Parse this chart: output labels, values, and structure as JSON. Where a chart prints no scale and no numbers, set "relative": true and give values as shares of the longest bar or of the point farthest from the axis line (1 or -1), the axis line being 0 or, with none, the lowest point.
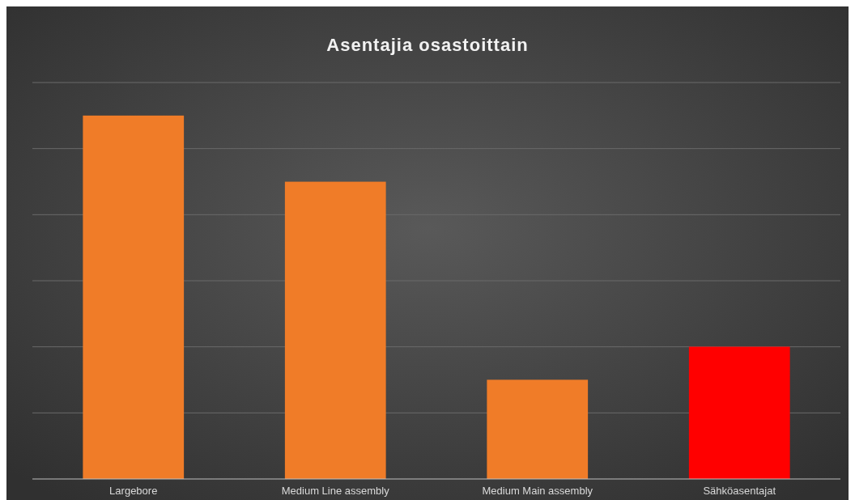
{
  "chart_data": {
    "type": "bar",
    "title": "Asentajia osastoittain",
    "relative": true,
    "grid": true,
    "categories": [
      "Largebore",
      "Medium Line assembly",
      "Medium Main assembly",
      "Sähköasentajat"
    ],
    "values": [
      1,
      0.818,
      0.273,
      0.364
    ],
    "colors": [
      "#f07c28",
      "#f07c28",
      "#f07c28",
      "#ff0000"
    ]
  }
}
